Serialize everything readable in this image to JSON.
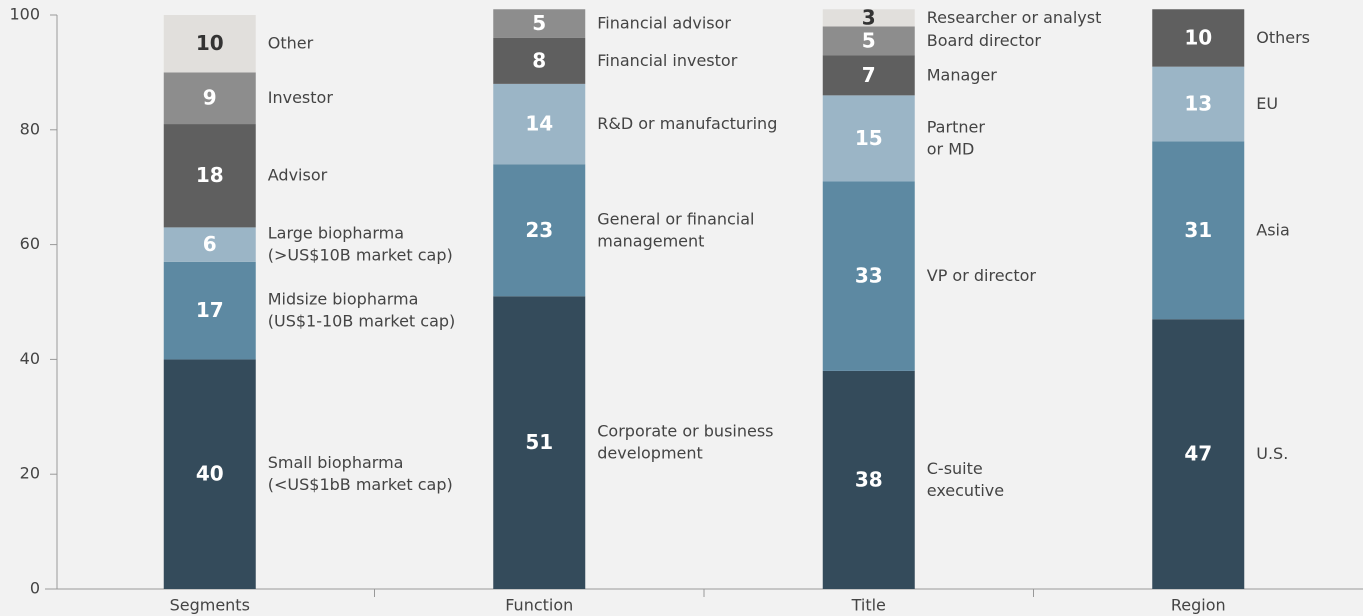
{
  "chart_data": {
    "type": "stacked_bar",
    "categories": [
      "Segments",
      "Function",
      "Title",
      "Region"
    ],
    "ylim": [
      0,
      100
    ],
    "yticks": [
      0,
      20,
      40,
      60,
      80,
      100
    ],
    "stacks": [
      [
        {
          "name": "Small biopharma\n(<US$1bB market cap)",
          "value": 40,
          "color": "#344b5b"
        },
        {
          "name": "Midsize biopharma\n(US$1-10B market cap)",
          "value": 17,
          "color": "#5d89a2"
        },
        {
          "name": "Large biopharma\n(>US$10B market cap)",
          "value": 6,
          "color": "#9bb5c6"
        },
        {
          "name": "Advisor",
          "value": 18,
          "color": "#5f5f5f"
        },
        {
          "name": "Investor",
          "value": 9,
          "color": "#8d8d8d"
        },
        {
          "name": "Other",
          "value": 10,
          "color": "#e1dfdc"
        }
      ],
      [
        {
          "name": "Corporate or business\ndevelopment",
          "value": 51,
          "color": "#344b5b"
        },
        {
          "name": "General or financial\nmanagement",
          "value": 23,
          "color": "#5d89a2"
        },
        {
          "name": "R&D or manufacturing",
          "value": 14,
          "color": "#9bb5c6"
        },
        {
          "name": "Financial investor",
          "value": 8,
          "color": "#5f5f5f"
        },
        {
          "name": "Financial advisor",
          "value": 5,
          "color": "#8d8d8d"
        }
      ],
      [
        {
          "name": "C-suite\nexecutive",
          "value": 38,
          "color": "#344b5b"
        },
        {
          "name": "VP or director",
          "value": 33,
          "color": "#5d89a2"
        },
        {
          "name": "Partner\nor MD",
          "value": 15,
          "color": "#9bb5c6"
        },
        {
          "name": "Manager",
          "value": 7,
          "color": "#5f5f5f"
        },
        {
          "name": "Board director",
          "value": 5,
          "color": "#8d8d8d"
        },
        {
          "name": "Researcher or analyst",
          "value": 3,
          "color": "#e1dfdc"
        }
      ],
      [
        {
          "name": "U.S.",
          "value": 47,
          "color": "#344b5b"
        },
        {
          "name": "Asia",
          "value": 31,
          "color": "#5d89a2"
        },
        {
          "name": "EU",
          "value": 13,
          "color": "#9bb5c6"
        },
        {
          "name": "Others",
          "value": 10,
          "color": "#5f5f5f"
        }
      ]
    ]
  }
}
